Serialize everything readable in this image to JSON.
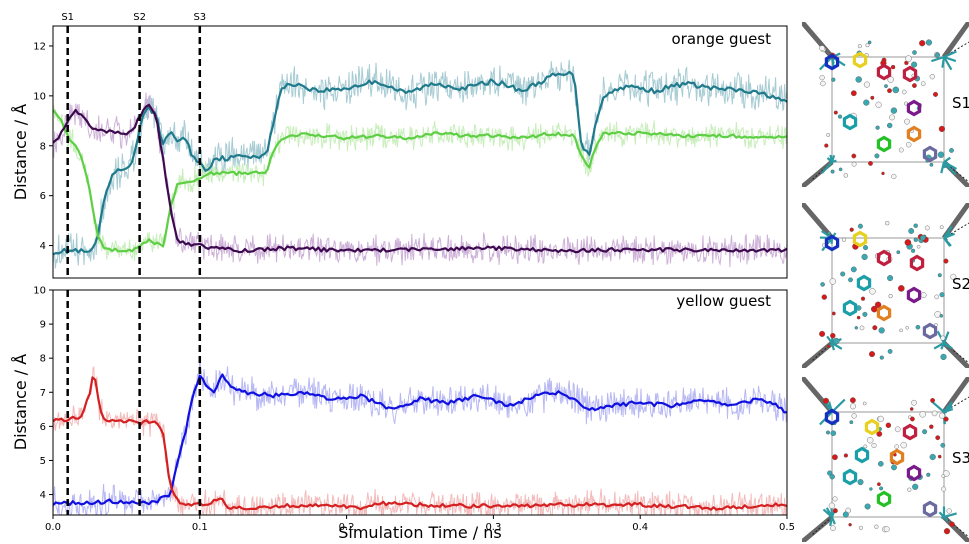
{
  "chart_data": [
    {
      "type": "line",
      "annotation": "orange guest",
      "ylabel": "Distance / Å",
      "xlim": [
        0,
        0.5
      ],
      "ylim": [
        2.7,
        12.8
      ],
      "yticks": [
        "4",
        "6",
        "8",
        "10",
        "12"
      ],
      "events": [
        {
          "label": "S1",
          "x": 0.01
        },
        {
          "label": "S2",
          "x": 0.059
        },
        {
          "label": "S3",
          "x": 0.1
        }
      ],
      "series": [
        {
          "color": "#1f7a8c",
          "light": "#9fc6cf",
          "noise": 0.9,
          "points": [
            [
              0,
              3.75
            ],
            [
              0.015,
              3.8
            ],
            [
              0.025,
              3.7
            ],
            [
              0.03,
              4.2
            ],
            [
              0.035,
              5.8
            ],
            [
              0.04,
              6.8
            ],
            [
              0.045,
              7.0
            ],
            [
              0.05,
              7.1
            ],
            [
              0.055,
              7.5
            ],
            [
              0.06,
              9.0
            ],
            [
              0.065,
              9.5
            ],
            [
              0.07,
              9.3
            ],
            [
              0.075,
              8.0
            ],
            [
              0.08,
              8.6
            ],
            [
              0.085,
              8.2
            ],
            [
              0.09,
              8.3
            ],
            [
              0.095,
              7.6
            ],
            [
              0.1,
              7.3
            ],
            [
              0.105,
              7.0
            ],
            [
              0.11,
              7.5
            ],
            [
              0.12,
              7.5
            ],
            [
              0.13,
              7.6
            ],
            [
              0.145,
              7.6
            ],
            [
              0.15,
              8.8
            ],
            [
              0.155,
              10.3
            ],
            [
              0.165,
              10.5
            ],
            [
              0.18,
              10.2
            ],
            [
              0.2,
              10.3
            ],
            [
              0.22,
              10.6
            ],
            [
              0.24,
              10.1
            ],
            [
              0.26,
              10.5
            ],
            [
              0.28,
              10.3
            ],
            [
              0.3,
              10.6
            ],
            [
              0.32,
              10.2
            ],
            [
              0.34,
              10.8
            ],
            [
              0.355,
              10.9
            ],
            [
              0.36,
              8.0
            ],
            [
              0.365,
              7.6
            ],
            [
              0.37,
              9.0
            ],
            [
              0.375,
              10.0
            ],
            [
              0.39,
              10.4
            ],
            [
              0.41,
              10.2
            ],
            [
              0.43,
              10.5
            ],
            [
              0.45,
              10.3
            ],
            [
              0.47,
              10.2
            ],
            [
              0.49,
              10.0
            ],
            [
              0.5,
              9.7
            ]
          ]
        },
        {
          "color": "#5ecf45",
          "light": "#c2ecb4",
          "noise": 0.6,
          "points": [
            [
              0,
              9.5
            ],
            [
              0.005,
              9.1
            ],
            [
              0.01,
              8.4
            ],
            [
              0.015,
              8.0
            ],
            [
              0.02,
              7.5
            ],
            [
              0.025,
              6.2
            ],
            [
              0.03,
              4.5
            ],
            [
              0.035,
              3.9
            ],
            [
              0.045,
              3.8
            ],
            [
              0.055,
              3.8
            ],
            [
              0.06,
              4.0
            ],
            [
              0.065,
              4.2
            ],
            [
              0.07,
              4.1
            ],
            [
              0.075,
              4.0
            ],
            [
              0.08,
              5.5
            ],
            [
              0.085,
              6.5
            ],
            [
              0.095,
              6.6
            ],
            [
              0.1,
              6.7
            ],
            [
              0.105,
              6.9
            ],
            [
              0.12,
              6.9
            ],
            [
              0.145,
              6.9
            ],
            [
              0.15,
              7.8
            ],
            [
              0.155,
              8.3
            ],
            [
              0.17,
              8.5
            ],
            [
              0.2,
              8.3
            ],
            [
              0.22,
              8.4
            ],
            [
              0.24,
              8.3
            ],
            [
              0.26,
              8.5
            ],
            [
              0.28,
              8.4
            ],
            [
              0.3,
              8.4
            ],
            [
              0.32,
              8.3
            ],
            [
              0.34,
              8.5
            ],
            [
              0.355,
              8.4
            ],
            [
              0.36,
              7.6
            ],
            [
              0.365,
              7.1
            ],
            [
              0.37,
              8.0
            ],
            [
              0.375,
              8.5
            ],
            [
              0.4,
              8.5
            ],
            [
              0.43,
              8.4
            ],
            [
              0.46,
              8.4
            ],
            [
              0.49,
              8.3
            ],
            [
              0.5,
              8.4
            ]
          ]
        },
        {
          "color": "#3d0a4f",
          "light": "#c9a8d4",
          "noise": 0.7,
          "points": [
            [
              0,
              8.2
            ],
            [
              0.005,
              8.4
            ],
            [
              0.01,
              9.0
            ],
            [
              0.015,
              9.4
            ],
            [
              0.02,
              9.2
            ],
            [
              0.025,
              8.8
            ],
            [
              0.03,
              8.6
            ],
            [
              0.04,
              8.6
            ],
            [
              0.05,
              8.5
            ],
            [
              0.055,
              8.7
            ],
            [
              0.06,
              9.3
            ],
            [
              0.065,
              9.6
            ],
            [
              0.07,
              9.2
            ],
            [
              0.075,
              7.5
            ],
            [
              0.08,
              5.5
            ],
            [
              0.085,
              4.2
            ],
            [
              0.095,
              4.0
            ],
            [
              0.1,
              4.0
            ],
            [
              0.11,
              3.9
            ],
            [
              0.13,
              3.8
            ],
            [
              0.16,
              3.9
            ],
            [
              0.2,
              3.8
            ],
            [
              0.25,
              3.85
            ],
            [
              0.3,
              3.9
            ],
            [
              0.35,
              3.8
            ],
            [
              0.4,
              3.85
            ],
            [
              0.45,
              3.8
            ],
            [
              0.5,
              3.8
            ]
          ]
        }
      ]
    },
    {
      "type": "line",
      "annotation": "yellow guest",
      "xlabel": "Simulation Time / ns",
      "ylabel": "Distance / Å",
      "xlim": [
        0,
        0.5
      ],
      "ylim": [
        3.4,
        10
      ],
      "xticks": [
        "0.0",
        "0.1",
        "0.2",
        "0.3",
        "0.4",
        "0.5"
      ],
      "yticks": [
        "4",
        "5",
        "6",
        "7",
        "8",
        "9",
        "10"
      ],
      "events": [
        {
          "label": "S1",
          "x": 0.01
        },
        {
          "label": "S2",
          "x": 0.059
        },
        {
          "label": "S3",
          "x": 0.1
        }
      ],
      "series": [
        {
          "color": "#1010e0",
          "light": "#b0b0f4",
          "noise": 0.55,
          "points": [
            [
              0,
              3.75
            ],
            [
              0.02,
              3.75
            ],
            [
              0.04,
              3.8
            ],
            [
              0.06,
              3.75
            ],
            [
              0.07,
              3.8
            ],
            [
              0.08,
              4.0
            ],
            [
              0.085,
              5.0
            ],
            [
              0.09,
              5.8
            ],
            [
              0.095,
              6.8
            ],
            [
              0.1,
              7.5
            ],
            [
              0.105,
              7.2
            ],
            [
              0.11,
              7.0
            ],
            [
              0.115,
              7.5
            ],
            [
              0.12,
              7.2
            ],
            [
              0.13,
              7.0
            ],
            [
              0.15,
              6.9
            ],
            [
              0.17,
              7.0
            ],
            [
              0.19,
              6.8
            ],
            [
              0.21,
              6.9
            ],
            [
              0.23,
              6.5
            ],
            [
              0.25,
              6.8
            ],
            [
              0.27,
              6.7
            ],
            [
              0.29,
              6.9
            ],
            [
              0.31,
              6.6
            ],
            [
              0.33,
              6.9
            ],
            [
              0.345,
              7.0
            ],
            [
              0.355,
              6.8
            ],
            [
              0.365,
              6.5
            ],
            [
              0.38,
              6.6
            ],
            [
              0.4,
              6.7
            ],
            [
              0.42,
              6.6
            ],
            [
              0.44,
              6.8
            ],
            [
              0.46,
              6.6
            ],
            [
              0.48,
              6.8
            ],
            [
              0.49,
              6.7
            ],
            [
              0.5,
              6.4
            ]
          ]
        },
        {
          "color": "#d42020",
          "light": "#f2b4b4",
          "noise": 0.5,
          "points": [
            [
              0,
              6.2
            ],
            [
              0.01,
              6.2
            ],
            [
              0.02,
              6.3
            ],
            [
              0.025,
              7.0
            ],
            [
              0.028,
              7.6
            ],
            [
              0.032,
              6.5
            ],
            [
              0.035,
              6.2
            ],
            [
              0.05,
              6.15
            ],
            [
              0.06,
              6.1
            ],
            [
              0.07,
              6.2
            ],
            [
              0.075,
              5.8
            ],
            [
              0.08,
              4.2
            ],
            [
              0.085,
              3.8
            ],
            [
              0.09,
              3.75
            ],
            [
              0.1,
              3.7
            ],
            [
              0.11,
              3.8
            ],
            [
              0.115,
              3.85
            ],
            [
              0.12,
              3.6
            ],
            [
              0.15,
              3.65
            ],
            [
              0.18,
              3.7
            ],
            [
              0.21,
              3.6
            ],
            [
              0.22,
              3.75
            ],
            [
              0.25,
              3.7
            ],
            [
              0.3,
              3.65
            ],
            [
              0.35,
              3.7
            ],
            [
              0.4,
              3.7
            ],
            [
              0.45,
              3.6
            ],
            [
              0.5,
              3.7
            ]
          ]
        }
      ]
    }
  ],
  "panels": [
    {
      "label": "S1"
    },
    {
      "label": "S2"
    },
    {
      "label": "S3"
    }
  ]
}
